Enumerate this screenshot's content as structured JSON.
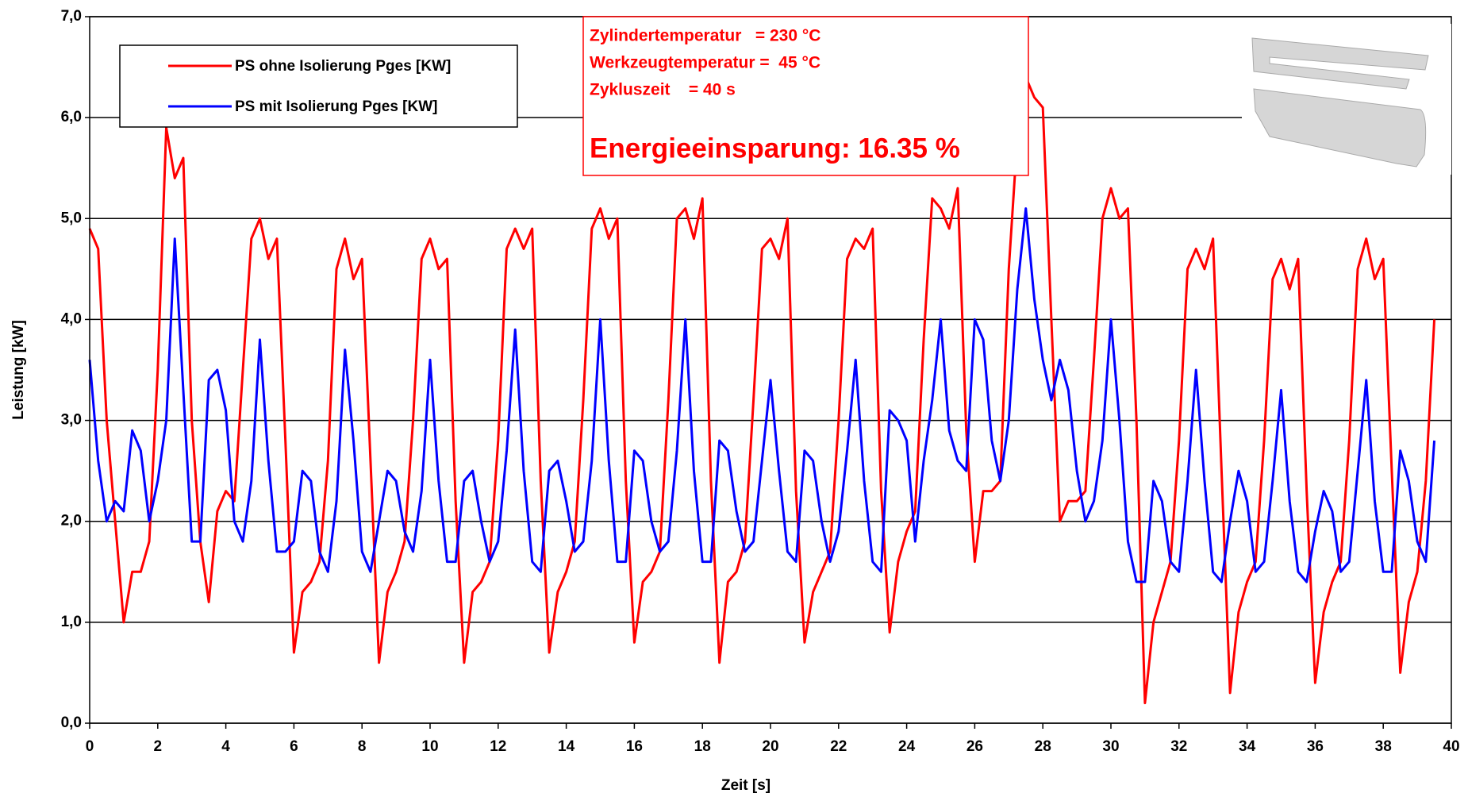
{
  "chart_data": {
    "type": "line",
    "x_label": "Zeit [s]",
    "y_label": "Leistung [kW]",
    "xlim": [
      0,
      40
    ],
    "xticks": [
      0,
      2,
      4,
      6,
      8,
      10,
      12,
      14,
      16,
      18,
      20,
      22,
      24,
      26,
      28,
      30,
      32,
      34,
      36,
      38,
      40
    ],
    "ylim": [
      0,
      7
    ],
    "yticks": [
      {
        "value": 0,
        "label": "0,0"
      },
      {
        "value": 1,
        "label": "1,0"
      },
      {
        "value": 2,
        "label": "2,0"
      },
      {
        "value": 3,
        "label": "3,0"
      },
      {
        "value": 4,
        "label": "4,0"
      },
      {
        "value": 5,
        "label": "5,0"
      },
      {
        "value": 6,
        "label": "6,0"
      },
      {
        "value": 7,
        "label": "7,0"
      }
    ],
    "grid": true,
    "annotations": [
      "Zylindertemperatur   = 230 °C",
      "Werkzeugtemperatur =  45 °C",
      "Zykluszeit    = 40 s",
      "Energieeinsparung: 16.35 %"
    ],
    "x": [
      0,
      0.25,
      0.5,
      0.75,
      1,
      1.25,
      1.5,
      1.75,
      2,
      2.25,
      2.5,
      2.75,
      3,
      3.25,
      3.5,
      3.75,
      4,
      4.25,
      4.5,
      4.75,
      5,
      5.25,
      5.5,
      5.75,
      6,
      6.25,
      6.5,
      6.75,
      7,
      7.25,
      7.5,
      7.75,
      8,
      8.25,
      8.5,
      8.75,
      9,
      9.25,
      9.5,
      9.75,
      10,
      10.25,
      10.5,
      10.75,
      11,
      11.25,
      11.5,
      11.75,
      12,
      12.25,
      12.5,
      12.75,
      13,
      13.25,
      13.5,
      13.75,
      14,
      14.25,
      14.5,
      14.75,
      15,
      15.25,
      15.5,
      15.75,
      16,
      16.25,
      16.5,
      16.75,
      17,
      17.25,
      17.5,
      17.75,
      18,
      18.25,
      18.5,
      18.75,
      19,
      19.25,
      19.5,
      19.75,
      20,
      20.25,
      20.5,
      20.75,
      21,
      21.25,
      21.5,
      21.75,
      22,
      22.25,
      22.5,
      22.75,
      23,
      23.25,
      23.5,
      23.75,
      24,
      24.25,
      24.5,
      24.75,
      25,
      25.25,
      25.5,
      25.75,
      26,
      26.25,
      26.5,
      26.75,
      27,
      27.25,
      27.5,
      27.75,
      28,
      28.25,
      28.5,
      28.75,
      29,
      29.25,
      29.5,
      29.75,
      30,
      30.25,
      30.5,
      30.75,
      31,
      31.25,
      31.5,
      31.75,
      32,
      32.25,
      32.5,
      32.75,
      33,
      33.25,
      33.5,
      33.75,
      34,
      34.25,
      34.5,
      34.75,
      35,
      35.25,
      35.5,
      35.75,
      36,
      36.25,
      36.5,
      36.75,
      37,
      37.25,
      37.5,
      37.75,
      38,
      38.25,
      38.5,
      38.75,
      39,
      39.25,
      39.5
    ],
    "series": [
      {
        "name": "PS ohne Isolierung Pges [KW]",
        "color": "#ff0000",
        "values": [
          4.9,
          4.7,
          3.0,
          2.0,
          1.0,
          1.5,
          1.5,
          1.8,
          3.5,
          5.9,
          5.4,
          5.6,
          3.0,
          1.8,
          1.2,
          2.1,
          2.3,
          2.2,
          3.5,
          4.8,
          5.0,
          4.6,
          4.8,
          2.8,
          0.7,
          1.3,
          1.4,
          1.6,
          2.6,
          4.5,
          4.8,
          4.4,
          4.6,
          2.6,
          0.6,
          1.3,
          1.5,
          1.8,
          3.0,
          4.6,
          4.8,
          4.5,
          4.6,
          2.2,
          0.6,
          1.3,
          1.4,
          1.6,
          2.8,
          4.7,
          4.9,
          4.7,
          4.9,
          2.4,
          0.7,
          1.3,
          1.5,
          1.8,
          3.2,
          4.9,
          5.1,
          4.8,
          5.0,
          2.4,
          0.8,
          1.4,
          1.5,
          1.7,
          3.2,
          5.0,
          5.1,
          4.8,
          5.2,
          2.4,
          0.6,
          1.4,
          1.5,
          1.8,
          3.2,
          4.7,
          4.8,
          4.6,
          5.0,
          2.3,
          0.8,
          1.3,
          1.5,
          1.7,
          3.0,
          4.6,
          4.8,
          4.7,
          4.9,
          2.3,
          0.9,
          1.6,
          1.9,
          2.1,
          3.8,
          5.2,
          5.1,
          4.9,
          5.3,
          2.9,
          1.6,
          2.3,
          2.3,
          2.4,
          4.5,
          5.8,
          6.4,
          6.2,
          6.1,
          4.0,
          2.0,
          2.2,
          2.2,
          2.3,
          3.6,
          5.0,
          5.3,
          5.0,
          5.1,
          3.0,
          0.2,
          1.0,
          1.3,
          1.6,
          2.8,
          4.5,
          4.7,
          4.5,
          4.8,
          2.5,
          0.3,
          1.1,
          1.4,
          1.6,
          2.8,
          4.4,
          4.6,
          4.3,
          4.6,
          2.3,
          0.4,
          1.1,
          1.4,
          1.6,
          2.8,
          4.5,
          4.8,
          4.4,
          4.6,
          2.5,
          0.5,
          1.2,
          1.5,
          2.4,
          4.0
        ]
      },
      {
        "name": "PS mit Isolierung Pges [KW]",
        "color": "#0000ff",
        "values": [
          3.6,
          2.6,
          2.0,
          2.2,
          2.1,
          2.9,
          2.7,
          2.0,
          2.4,
          3.0,
          4.8,
          3.3,
          1.8,
          1.8,
          3.4,
          3.5,
          3.1,
          2.0,
          1.8,
          2.4,
          3.8,
          2.6,
          1.7,
          1.7,
          1.8,
          2.5,
          2.4,
          1.7,
          1.5,
          2.2,
          3.7,
          2.8,
          1.7,
          1.5,
          2.0,
          2.5,
          2.4,
          1.9,
          1.7,
          2.3,
          3.6,
          2.4,
          1.6,
          1.6,
          2.4,
          2.5,
          2.0,
          1.6,
          1.8,
          2.7,
          3.9,
          2.5,
          1.6,
          1.5,
          2.5,
          2.6,
          2.2,
          1.7,
          1.8,
          2.6,
          4.0,
          2.6,
          1.6,
          1.6,
          2.7,
          2.6,
          2.0,
          1.7,
          1.8,
          2.7,
          4.0,
          2.5,
          1.6,
          1.6,
          2.8,
          2.7,
          2.1,
          1.7,
          1.8,
          2.6,
          3.4,
          2.5,
          1.7,
          1.6,
          2.7,
          2.6,
          2.0,
          1.6,
          1.9,
          2.7,
          3.6,
          2.4,
          1.6,
          1.5,
          3.1,
          3.0,
          2.8,
          1.8,
          2.6,
          3.2,
          4.0,
          2.9,
          2.6,
          2.5,
          4.0,
          3.8,
          2.8,
          2.4,
          3.0,
          4.3,
          5.1,
          4.2,
          3.6,
          3.2,
          3.6,
          3.3,
          2.5,
          2.0,
          2.2,
          2.8,
          4.0,
          3.0,
          1.8,
          1.4,
          1.4,
          2.4,
          2.2,
          1.6,
          1.5,
          2.4,
          3.5,
          2.4,
          1.5,
          1.4,
          2.0,
          2.5,
          2.2,
          1.5,
          1.6,
          2.4,
          3.3,
          2.2,
          1.5,
          1.4,
          1.9,
          2.3,
          2.1,
          1.5,
          1.6,
          2.5,
          3.4,
          2.2,
          1.5,
          1.5,
          2.7,
          2.4,
          1.8,
          1.6,
          2.8
        ]
      }
    ]
  }
}
